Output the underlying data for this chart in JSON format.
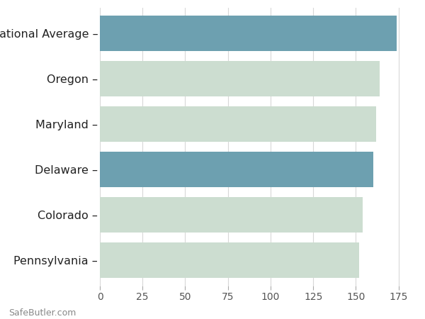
{
  "categories": [
    "Pennsylvania",
    "Colorado",
    "Delaware",
    "Maryland",
    "Oregon",
    "National Average"
  ],
  "values": [
    152,
    154,
    160,
    162,
    164,
    174
  ],
  "bar_colors": [
    "#ccddd0",
    "#ccddd0",
    "#6da0b0",
    "#ccddd0",
    "#ccddd0",
    "#6da0b0"
  ],
  "xlim": [
    0,
    183
  ],
  "xticks": [
    0,
    25,
    50,
    75,
    100,
    125,
    150,
    175
  ],
  "background_color": "#ffffff",
  "bar_height": 0.78,
  "grid_color": "#d8d8d8",
  "label_color": "#222222",
  "tick_label_color": "#555555",
  "watermark": "SafeButler.com",
  "label_fontsize": 11.5,
  "tick_fontsize": 10
}
